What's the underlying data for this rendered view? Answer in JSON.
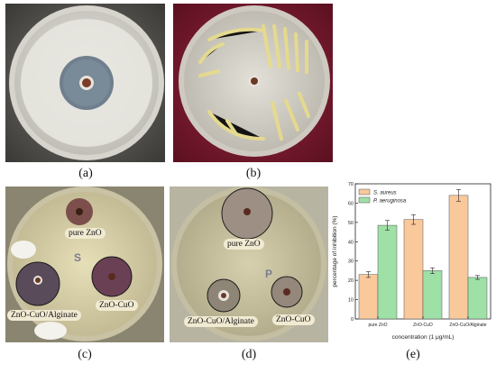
{
  "captions": {
    "a": "(a)",
    "b": "(b)",
    "c": "(c)",
    "d": "(d)",
    "e": "(e)"
  },
  "panel_c": {
    "labels": {
      "pure": "pure ZnO",
      "alg": "ZnO-CuO/Alginate",
      "cuo": "ZnO-CuO"
    },
    "plate_letter": "S"
  },
  "panel_d": {
    "labels": {
      "pure": "pure ZnO",
      "alg": "ZnO-CuO/Alginate",
      "cuo": "ZnO-CuO"
    },
    "plate_letter": "P"
  },
  "chart_data": {
    "type": "bar",
    "categories": [
      "pure ZnO",
      "ZnO-CuO",
      "ZnO-CuO/Alginate"
    ],
    "series": [
      {
        "name": "S. aureus",
        "values": [
          23,
          51.5,
          64
        ],
        "errors": [
          1.5,
          2.5,
          3
        ],
        "color": "#f9c89b"
      },
      {
        "name": "P. aeruginosa",
        "values": [
          48.5,
          25,
          21.5
        ],
        "errors": [
          2.5,
          1.5,
          1
        ],
        "color": "#9fe0a6"
      }
    ],
    "xlabel": "concentration (1 μg/mL)",
    "ylabel": "percentage of inhibition (%)",
    "ylim": [
      0,
      70
    ],
    "yticks": [
      0,
      10,
      20,
      30,
      40,
      50,
      60,
      70
    ],
    "legend": "top-left",
    "grid": false
  }
}
